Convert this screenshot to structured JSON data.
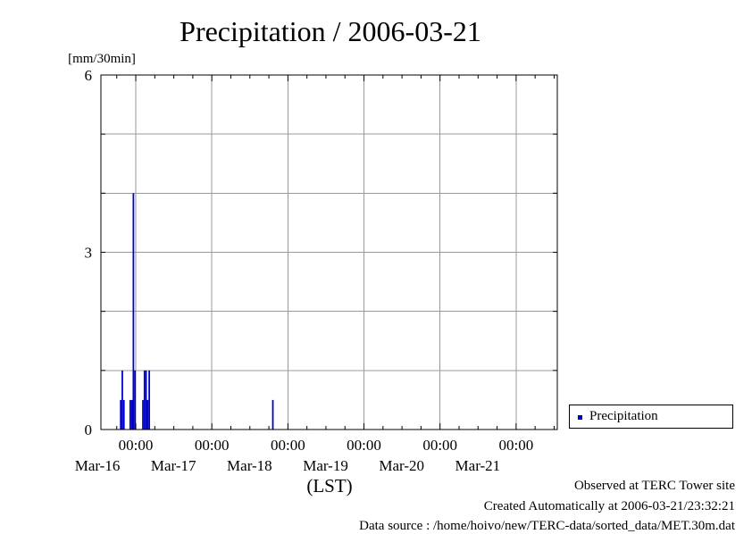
{
  "chart_data": {
    "type": "bar",
    "title": "Precipitation / 2006-03-21",
    "ylabel": "[mm/30min]",
    "xlabel": "(LST)",
    "ylim": [
      0,
      6
    ],
    "yticks": [
      "0",
      "3",
      "6"
    ],
    "xlim": [
      "2006-03-15 13:00",
      "2006-03-21 13:00"
    ],
    "xticks": [
      {
        "time": "00:00",
        "date": "Mar-16"
      },
      {
        "time": "00:00",
        "date": "Mar-17"
      },
      {
        "time": "00:00",
        "date": "Mar-18"
      },
      {
        "time": "00:00",
        "date": "Mar-19"
      },
      {
        "time": "00:00",
        "date": "Mar-20"
      },
      {
        "time": "00:00",
        "date": "Mar-21"
      }
    ],
    "grid": true,
    "legend": {
      "position": "right",
      "entries": [
        "Precipitation"
      ]
    },
    "series": [
      {
        "name": "Precipitation",
        "color": "#0000cc",
        "points": [
          {
            "t": "2006-03-15 19:00",
            "v": 0.5
          },
          {
            "t": "2006-03-15 19:30",
            "v": 1.0
          },
          {
            "t": "2006-03-15 20:00",
            "v": 0.5
          },
          {
            "t": "2006-03-15 22:00",
            "v": 0.5
          },
          {
            "t": "2006-03-15 22:30",
            "v": 0.5
          },
          {
            "t": "2006-03-15 23:00",
            "v": 4.0
          },
          {
            "t": "2006-03-15 23:30",
            "v": 1.0
          },
          {
            "t": "2006-03-16 02:00",
            "v": 0.5
          },
          {
            "t": "2006-03-16 02:30",
            "v": 1.0
          },
          {
            "t": "2006-03-16 03:00",
            "v": 1.0
          },
          {
            "t": "2006-03-16 03:30",
            "v": 0.5
          },
          {
            "t": "2006-03-16 04:00",
            "v": 1.0
          },
          {
            "t": "2006-03-17 19:00",
            "v": 0.5
          }
        ]
      }
    ]
  },
  "footer": {
    "observed": "Observed at TERC Tower site",
    "created": "Created Automatically at 2006-03-21/23:32:21",
    "source": "Data source : /home/hoivo/new/TERC-data/sorted_data/MET.30m.dat"
  }
}
